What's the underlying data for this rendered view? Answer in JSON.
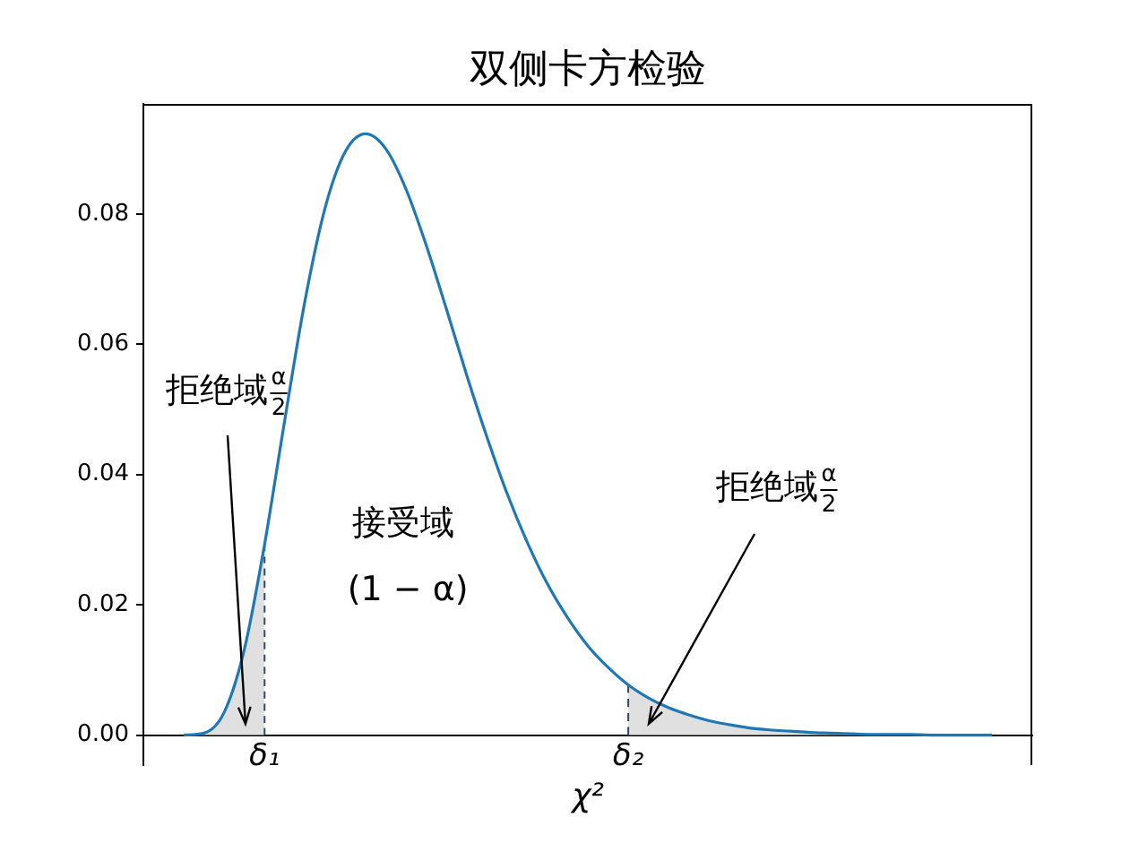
{
  "chart_data": {
    "type": "line",
    "title": "双侧卡方检验",
    "xlabel": "χ²",
    "categories": [
      null,
      null,
      null,
      null,
      "δ₁",
      null,
      null,
      null,
      null,
      null,
      null,
      null,
      null,
      null,
      null,
      null,
      null,
      null,
      null,
      null,
      null,
      null,
      "δ₂",
      null,
      null,
      null,
      null,
      null,
      null,
      null,
      null,
      null,
      null,
      null,
      null,
      null,
      null,
      null,
      null,
      null,
      null
    ],
    "series": [
      {
        "color": "#1f77b4",
        "values": [
          0,
          0.0003,
          0.0035,
          0.0132,
          0.0293,
          0.0484,
          0.0667,
          0.081,
          0.0896,
          0.0923,
          0.09,
          0.0838,
          0.0752,
          0.0654,
          0.0553,
          0.0458,
          0.0371,
          0.0296,
          0.0232,
          0.018,
          0.0137,
          0.0104,
          0.0077,
          0.0057,
          0.0042,
          0.0031,
          0.0022,
          0.0016,
          0.0011,
          0.0008,
          0.0006,
          0.0004,
          0.0003,
          0.0002,
          0.0001,
          0.0001,
          0.0001,
          0,
          0,
          0,
          0
        ]
      },
      {
        "color": "#2f4b6b",
        "line_style": "dashed",
        "x": [
          "δ₁",
          "δ₁"
        ],
        "values": [
          0,
          0.0293
        ]
      },
      {
        "color": "#2f4b6b",
        "line_style": "dashed",
        "x": [
          "δ₂",
          "δ₂"
        ],
        "values": [
          0,
          0.0077
        ]
      },
      {
        "type": "area",
        "color": "#e0e0e0",
        "values": [
          0,
          0.0003,
          0.0035,
          0.0132,
          0.0293,
          null,
          null,
          null,
          null,
          null,
          null,
          null,
          null,
          null,
          null,
          null,
          null,
          null,
          null,
          null,
          null,
          null,
          null,
          null,
          null,
          null,
          null,
          null,
          null,
          null,
          null,
          null,
          null,
          null,
          null,
          null,
          null,
          null,
          null,
          null,
          null
        ]
      },
      {
        "type": "area",
        "color": "#e0e0e0",
        "values": [
          null,
          null,
          null,
          null,
          null,
          null,
          null,
          null,
          null,
          null,
          null,
          null,
          null,
          null,
          null,
          null,
          null,
          null,
          null,
          null,
          null,
          null,
          0.0077,
          0.0057,
          0.0042,
          0.0031,
          0.0022,
          0.0016,
          0.0011,
          0.0008,
          0.0006,
          0.0004,
          0.0003,
          0.0002,
          0.0001,
          0.0001,
          0.0001,
          0,
          0,
          0,
          0
        ]
      }
    ],
    "ylim": [
      -0.0046,
      0.0969
    ],
    "yticks": [
      {
        "value": 0,
        "label": "0.00"
      },
      0.02,
      0.04,
      0.06,
      0.08
    ],
    "annotations": [
      "拒绝域$^{α}$$_{2}$",
      "拒绝域$^{α}$$_{2}$",
      "接受域",
      "(1 − α)"
    ]
  }
}
